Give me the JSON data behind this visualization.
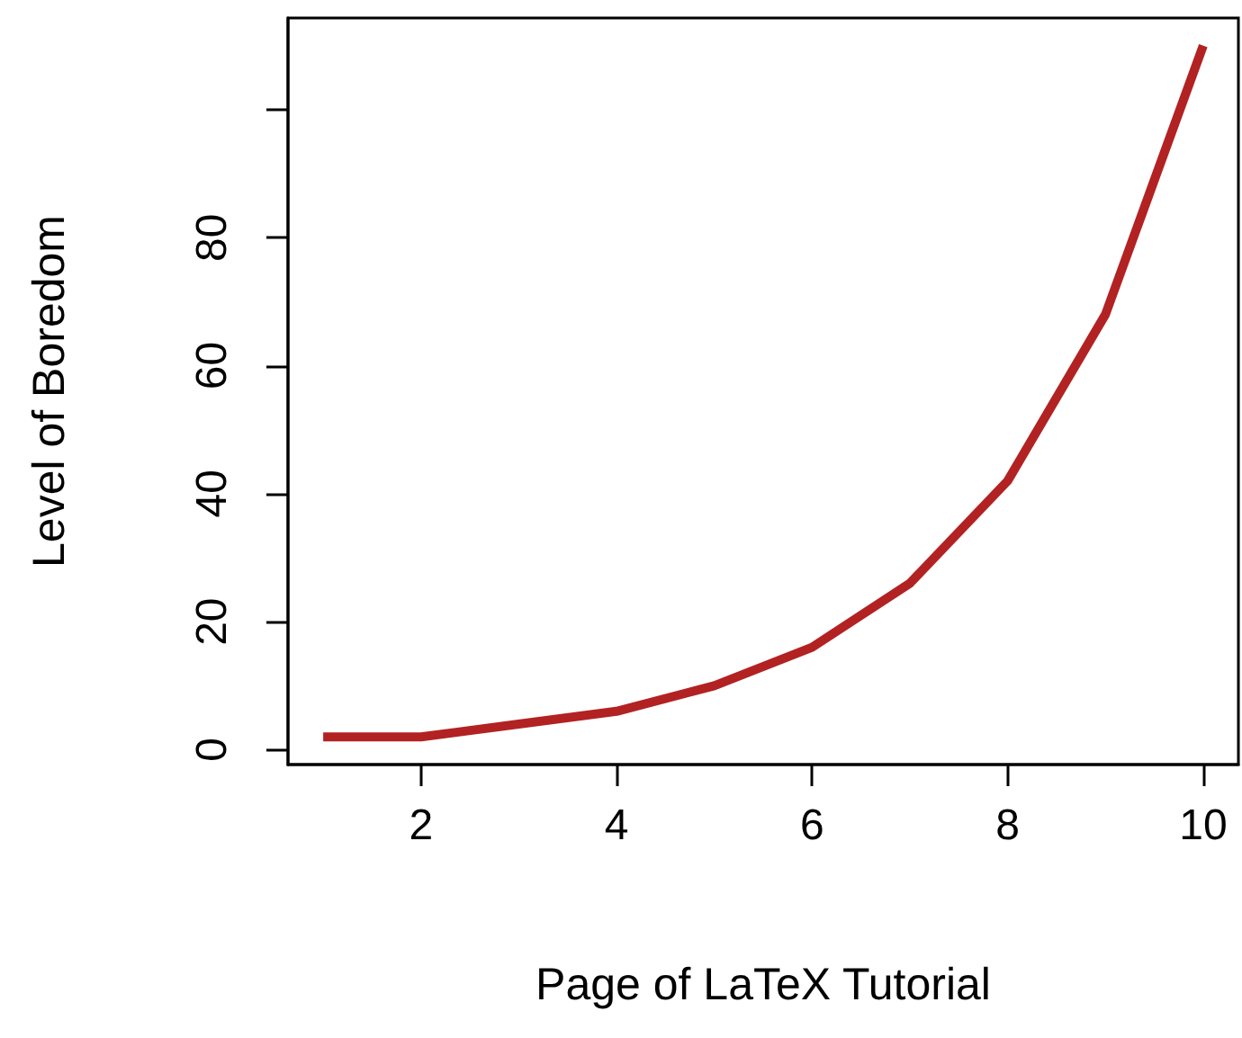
{
  "chart_data": {
    "type": "line",
    "xlabel": "Page of LaTeX Tutorial",
    "ylabel": "Level of Boredom",
    "x": [
      1,
      2,
      3,
      4,
      5,
      6,
      7,
      8,
      9,
      10
    ],
    "series": [
      {
        "color": "#b22222",
        "values": [
          2,
          2,
          4,
          6,
          10,
          16,
          26,
          42,
          68,
          110
        ]
      }
    ],
    "xlim": [
      0.64,
      10.36
    ],
    "xticks": [
      2,
      4,
      6,
      8,
      10
    ],
    "ylim": [
      -2.32,
      114.32
    ],
    "yticks": [
      0,
      20,
      40,
      60,
      80,
      {
        "value": 100,
        "label": null
      }
    ],
    "marker": "none",
    "line_style": "solid"
  }
}
